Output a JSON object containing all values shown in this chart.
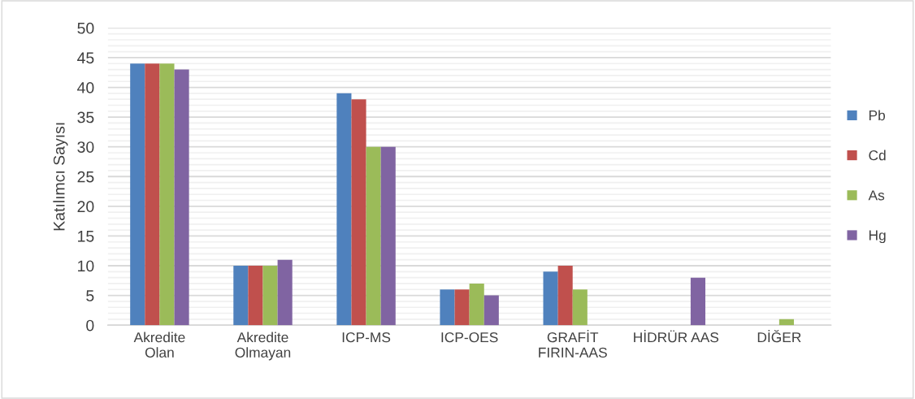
{
  "chart_data": {
    "type": "bar",
    "ylabel": "Katılımcı Sayısı",
    "categories": [
      "Akredite\nOlan",
      "Akredite\nOlmayan",
      "ICP-MS",
      "ICP-OES",
      "GRAFİT\nFIRIN-AAS",
      "HİDRÜR AAS",
      "DİĞER"
    ],
    "series": [
      {
        "name": "Pb",
        "color": "#4f81bd",
        "values": [
          44,
          10,
          39,
          6,
          9,
          0,
          0
        ]
      },
      {
        "name": "Cd",
        "color": "#c0504d",
        "values": [
          44,
          10,
          38,
          6,
          10,
          0,
          0
        ]
      },
      {
        "name": "As",
        "color": "#9bbb59",
        "values": [
          44,
          10,
          30,
          7,
          6,
          0,
          1
        ]
      },
      {
        "name": "Hg",
        "color": "#8064a2",
        "values": [
          43,
          11,
          30,
          5,
          0,
          8,
          0
        ]
      }
    ],
    "ylim": [
      0,
      50
    ],
    "yticks": [
      0,
      {
        "value": 1,
        "label": null
      },
      {
        "value": 2,
        "label": null
      },
      {
        "value": 3,
        "label": null
      },
      {
        "value": 4,
        "label": null
      },
      5,
      {
        "value": 6,
        "label": null
      },
      {
        "value": 7,
        "label": null
      },
      {
        "value": 8,
        "label": null
      },
      {
        "value": 9,
        "label": null
      },
      10,
      {
        "value": 11,
        "label": null
      },
      {
        "value": 12,
        "label": null
      },
      {
        "value": 13,
        "label": null
      },
      {
        "value": 14,
        "label": null
      },
      15,
      {
        "value": 16,
        "label": null
      },
      {
        "value": 17,
        "label": null
      },
      {
        "value": 18,
        "label": null
      },
      {
        "value": 19,
        "label": null
      },
      20,
      {
        "value": 21,
        "label": null
      },
      {
        "value": 22,
        "label": null
      },
      {
        "value": 23,
        "label": null
      },
      {
        "value": 24,
        "label": null
      },
      25,
      {
        "value": 26,
        "label": null
      },
      {
        "value": 27,
        "label": null
      },
      {
        "value": 28,
        "label": null
      },
      {
        "value": 29,
        "label": null
      },
      30,
      {
        "value": 31,
        "label": null
      },
      {
        "value": 32,
        "label": null
      },
      {
        "value": 33,
        "label": null
      },
      {
        "value": 34,
        "label": null
      },
      35,
      {
        "value": 36,
        "label": null
      },
      {
        "value": 37,
        "label": null
      },
      {
        "value": 38,
        "label": null
      },
      {
        "value": 39,
        "label": null
      },
      40,
      {
        "value": 41,
        "label": null
      },
      {
        "value": 42,
        "label": null
      },
      {
        "value": 43,
        "label": null
      },
      {
        "value": 44,
        "label": null
      },
      45,
      {
        "value": 46,
        "label": null
      },
      {
        "value": 47,
        "label": null
      },
      {
        "value": 48,
        "label": null
      },
      {
        "value": 49,
        "label": null
      },
      50
    ],
    "grid": "y",
    "legend": "right"
  }
}
